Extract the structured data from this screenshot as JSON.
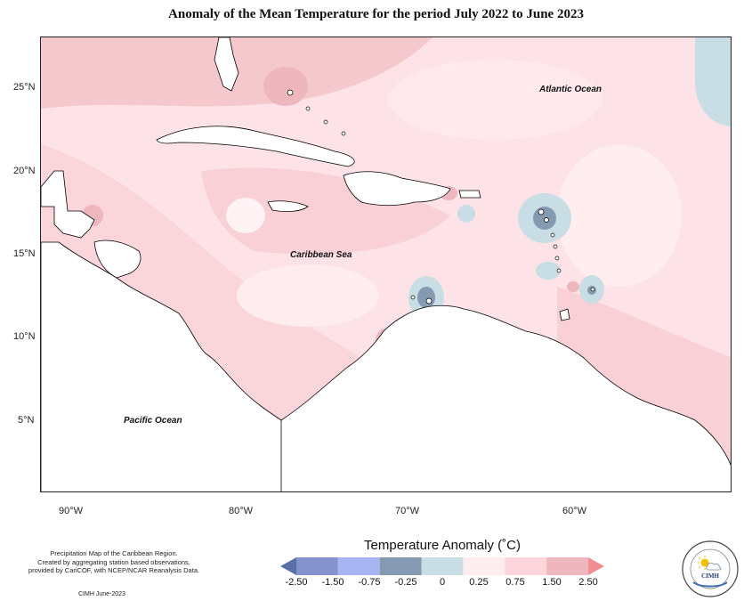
{
  "title": "Anomaly of the Mean Temperature for the period July 2022 to June 2023",
  "map": {
    "lat_labels": [
      "25°N",
      "20°N",
      "15°N",
      "10°N",
      "5°N"
    ],
    "lon_labels": [
      "90°W",
      "80°W",
      "70°W",
      "60°W"
    ],
    "ocean_labels": {
      "atlantic": "Atlantic Ocean",
      "caribbean": "Caribbean Sea",
      "pacific": "Pacific Ocean"
    }
  },
  "legend": {
    "title": "Temperature Anomaly (˚C)",
    "ticks": [
      "-2.50",
      "-1.50",
      "-0.75",
      "-0.25",
      "0",
      "0.25",
      "0.75",
      "1.50",
      "2.50"
    ],
    "colors": [
      "#5a6ea8",
      "#8592cc",
      "#a9b5f2",
      "#8599b0",
      "#c9dde5",
      "#ffeef0",
      "#fcd6dc",
      "#eeb7bd",
      "#f28e93"
    ]
  },
  "credits": {
    "line1": "Precipitation Map of the Caribbean Region.",
    "line2": "Created by aggregating station based observations,",
    "line3": "provided by CariCOF, with NCEP/NCAR Reanalysis Data.",
    "date": "CIMH June-2023"
  },
  "logo": {
    "name": "CIMH",
    "icon": "sun-cloud-icon"
  }
}
